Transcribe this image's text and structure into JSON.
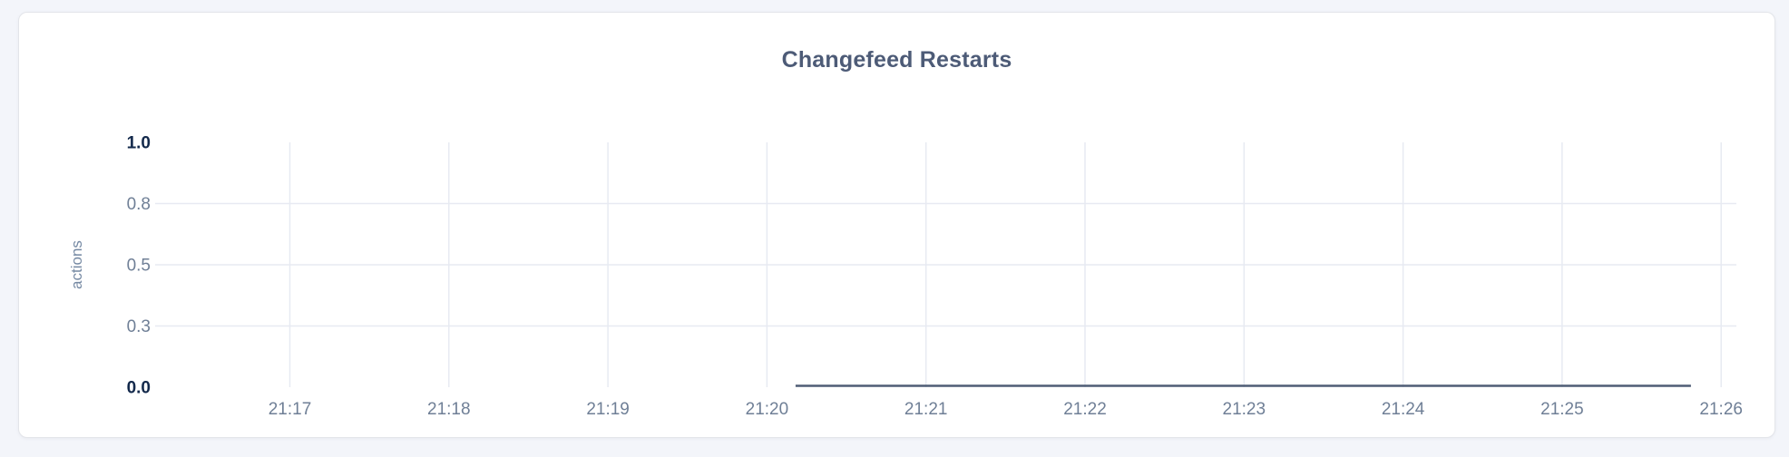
{
  "card": {
    "title": "Changefeed Restarts"
  },
  "colors": {
    "page_background": "#f3f5fa",
    "card_background": "#ffffff",
    "card_border": "#e3e5ea",
    "title": "#4d5b77",
    "axis_tick": "#6f7f96",
    "axis_tick_emphasis": "#13294b",
    "axis_unit_label": "#7589a3",
    "gridline": "#e7eaf2",
    "series_line": "#4f5d75"
  },
  "chart_data": {
    "type": "line",
    "title": "Changefeed Restarts",
    "xlabel": "",
    "ylabel": "actions",
    "ylim": [
      0,
      1.0
    ],
    "grid": true,
    "legend_position": "none",
    "x_ticks": [
      "21:17",
      "21:18",
      "21:19",
      "21:20",
      "21:21",
      "21:22",
      "21:23",
      "21:24",
      "21:25",
      "21:26"
    ],
    "y_ticks": [
      {
        "value": 1.0,
        "label": "1.0",
        "bold": true,
        "gridline": false
      },
      {
        "value": 0.75,
        "label": "0.8",
        "bold": false,
        "gridline": true
      },
      {
        "value": 0.5,
        "label": "0.5",
        "bold": false,
        "gridline": true
      },
      {
        "value": 0.25,
        "label": "0.3",
        "bold": false,
        "gridline": true
      },
      {
        "value": 0.0,
        "label": "0.0",
        "bold": true,
        "gridline": false
      }
    ],
    "series": [
      {
        "name": "Changefeed Restarts",
        "color": "#4f5d75",
        "description": "Flat line at 0 actions; data present only from 21:20:10 to 21:25:50",
        "points": [
          {
            "time": "21:20:10",
            "minutes_after_first_tick": 3.18,
            "value": 0
          },
          {
            "time": "21:25:50",
            "minutes_after_first_tick": 8.81,
            "value": 0
          }
        ]
      }
    ]
  }
}
